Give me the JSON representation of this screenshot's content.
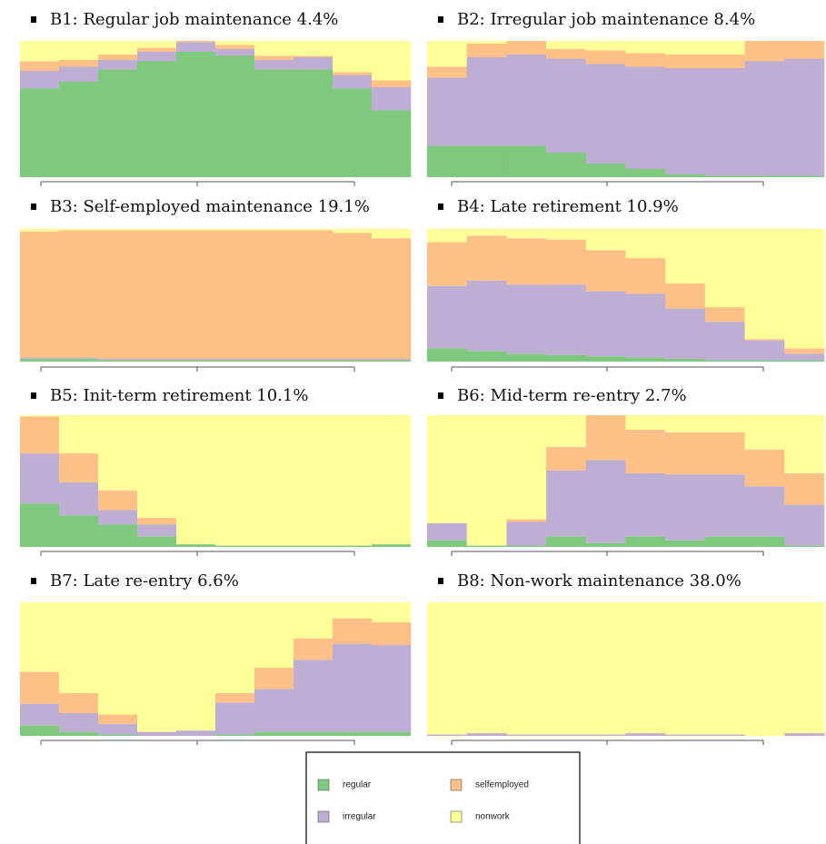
{
  "legend": {
    "items": [
      {
        "name": "regular",
        "color": "#7fc97f"
      },
      {
        "name": "irregular",
        "color": "#beaed4"
      },
      {
        "name": "selfemployed",
        "color": "#fdc086"
      },
      {
        "name": "nonwork",
        "color": "#ffff99"
      }
    ]
  },
  "chart_data": [
    {
      "type": "bar",
      "stacked": true,
      "title": "B1: Regular job maintenance 4.4%",
      "categories": [
        null,
        null,
        null,
        null,
        null,
        null,
        null,
        null,
        null,
        null
      ],
      "ylim": [
        0,
        1
      ],
      "series": [
        {
          "values": [
            0.65,
            0.7,
            0.79,
            0.85,
            0.92,
            0.89,
            0.79,
            0.79,
            0.65,
            0.49
          ]
        },
        {
          "values": [
            0.13,
            0.11,
            0.07,
            0.07,
            0.07,
            0.05,
            0.07,
            0.09,
            0.1,
            0.17
          ]
        },
        {
          "values": [
            0.07,
            0.05,
            0.04,
            0.03,
            0.01,
            0.03,
            0.03,
            0.01,
            0.02,
            0.05
          ]
        },
        {
          "values": [
            0.15,
            0.14,
            0.1,
            0.05,
            0.0,
            0.03,
            0.11,
            0.11,
            0.23,
            0.29
          ]
        }
      ]
    },
    {
      "type": "bar",
      "stacked": true,
      "title": "B2: Irregular job maintenance 8.4%",
      "categories": [
        null,
        null,
        null,
        null,
        null,
        null,
        null,
        null,
        null,
        null
      ],
      "ylim": [
        0,
        1
      ],
      "series": [
        {
          "values": [
            0.23,
            0.23,
            0.23,
            0.18,
            0.1,
            0.06,
            0.02,
            0.01,
            0.01,
            0.01
          ]
        },
        {
          "values": [
            0.5,
            0.65,
            0.67,
            0.69,
            0.73,
            0.75,
            0.78,
            0.79,
            0.84,
            0.86
          ]
        },
        {
          "values": [
            0.08,
            0.1,
            0.1,
            0.07,
            0.1,
            0.1,
            0.1,
            0.1,
            0.15,
            0.13
          ]
        },
        {
          "values": [
            0.19,
            0.02,
            0.0,
            0.06,
            0.07,
            0.09,
            0.1,
            0.1,
            0.0,
            0.0
          ]
        }
      ]
    },
    {
      "type": "bar",
      "stacked": true,
      "title": "B3: Self-employed maintenance 19.1%",
      "categories": [
        null,
        null,
        null,
        null,
        null,
        null,
        null,
        null,
        null,
        null
      ],
      "ylim": [
        0,
        1
      ],
      "series": [
        {
          "values": [
            0.02,
            0.02,
            0.01,
            0.01,
            0.01,
            0.01,
            0.01,
            0.01,
            0.01,
            0.01
          ]
        },
        {
          "values": [
            0.01,
            0.01,
            0.01,
            0.01,
            0.01,
            0.01,
            0.01,
            0.01,
            0.01,
            0.01
          ]
        },
        {
          "values": [
            0.95,
            0.96,
            0.97,
            0.97,
            0.97,
            0.97,
            0.97,
            0.97,
            0.95,
            0.91
          ]
        },
        {
          "values": [
            0.02,
            0.01,
            0.01,
            0.01,
            0.01,
            0.01,
            0.01,
            0.01,
            0.03,
            0.07
          ]
        }
      ]
    },
    {
      "type": "bar",
      "stacked": true,
      "title": "B4: Late retirement 10.9%",
      "categories": [
        null,
        null,
        null,
        null,
        null,
        null,
        null,
        null,
        null,
        null
      ],
      "ylim": [
        0,
        1
      ],
      "series": [
        {
          "values": [
            0.1,
            0.08,
            0.06,
            0.05,
            0.04,
            0.03,
            0.02,
            0.01,
            0.01,
            0.01
          ]
        },
        {
          "values": [
            0.47,
            0.53,
            0.52,
            0.53,
            0.49,
            0.48,
            0.38,
            0.29,
            0.15,
            0.05
          ]
        },
        {
          "values": [
            0.33,
            0.34,
            0.35,
            0.34,
            0.31,
            0.27,
            0.19,
            0.11,
            0.01,
            0.04
          ]
        },
        {
          "values": [
            0.1,
            0.05,
            0.07,
            0.08,
            0.16,
            0.22,
            0.41,
            0.59,
            0.83,
            0.9
          ]
        }
      ]
    },
    {
      "type": "bar",
      "stacked": true,
      "title": "B5: Init-term retirement 10.1%",
      "categories": [
        null,
        null,
        null,
        null,
        null,
        null,
        null,
        null,
        null,
        null
      ],
      "ylim": [
        0,
        1
      ],
      "series": [
        {
          "values": [
            0.33,
            0.24,
            0.17,
            0.08,
            0.02,
            0.01,
            0.01,
            0.01,
            0.01,
            0.02
          ]
        },
        {
          "values": [
            0.38,
            0.25,
            0.11,
            0.09,
            0.0,
            0.0,
            0.0,
            0.0,
            0.0,
            0.0
          ]
        },
        {
          "values": [
            0.28,
            0.22,
            0.15,
            0.05,
            0.0,
            0.0,
            0.0,
            0.0,
            0.0,
            0.0
          ]
        },
        {
          "values": [
            0.01,
            0.29,
            0.57,
            0.78,
            0.98,
            0.99,
            0.99,
            0.99,
            0.99,
            0.98
          ]
        }
      ]
    },
    {
      "type": "bar",
      "stacked": true,
      "title": "B6: Mid-term re-entry 2.7%",
      "categories": [
        null,
        null,
        null,
        null,
        null,
        null,
        null,
        null,
        null,
        null
      ],
      "ylim": [
        0,
        1
      ],
      "series": [
        {
          "values": [
            0.05,
            0.01,
            0.01,
            0.08,
            0.03,
            0.08,
            0.05,
            0.08,
            0.08,
            0.01
          ]
        },
        {
          "values": [
            0.13,
            0.0,
            0.18,
            0.5,
            0.63,
            0.48,
            0.5,
            0.47,
            0.38,
            0.31
          ]
        },
        {
          "values": [
            0.0,
            0.0,
            0.02,
            0.18,
            0.34,
            0.33,
            0.32,
            0.32,
            0.28,
            0.24
          ]
        },
        {
          "values": [
            0.82,
            0.99,
            0.79,
            0.24,
            0.0,
            0.11,
            0.13,
            0.13,
            0.26,
            0.44
          ]
        }
      ]
    },
    {
      "type": "bar",
      "stacked": true,
      "title": "B7: Late re-entry 6.6%",
      "categories": [
        null,
        null,
        null,
        null,
        null,
        null,
        null,
        null,
        null,
        null
      ],
      "ylim": [
        0,
        1
      ],
      "series": [
        {
          "values": [
            0.08,
            0.03,
            0.01,
            0.0,
            0.0,
            0.01,
            0.03,
            0.03,
            0.03,
            0.03
          ]
        },
        {
          "values": [
            0.16,
            0.14,
            0.08,
            0.03,
            0.04,
            0.24,
            0.32,
            0.54,
            0.66,
            0.65
          ]
        },
        {
          "values": [
            0.24,
            0.15,
            0.07,
            0.0,
            0.0,
            0.07,
            0.16,
            0.16,
            0.19,
            0.17
          ]
        },
        {
          "values": [
            0.52,
            0.68,
            0.84,
            0.97,
            0.96,
            0.68,
            0.49,
            0.27,
            0.12,
            0.15
          ]
        }
      ]
    },
    {
      "type": "bar",
      "stacked": true,
      "title": "B8: Non-work maintenance 38.0%",
      "categories": [
        null,
        null,
        null,
        null,
        null,
        null,
        null,
        null,
        null,
        null
      ],
      "ylim": [
        0,
        1
      ],
      "series": [
        {
          "values": [
            0.0,
            0.0,
            0.0,
            0.0,
            0.0,
            0.0,
            0.0,
            0.0,
            0.0,
            0.0
          ]
        },
        {
          "values": [
            0.01,
            0.02,
            0.01,
            0.01,
            0.01,
            0.02,
            0.01,
            0.01,
            0.0,
            0.02
          ]
        },
        {
          "values": [
            0.0,
            0.0,
            0.0,
            0.0,
            0.0,
            0.0,
            0.0,
            0.0,
            0.0,
            0.0
          ]
        },
        {
          "values": [
            0.99,
            0.98,
            0.99,
            0.99,
            0.99,
            0.98,
            0.99,
            0.99,
            1.0,
            0.98
          ]
        }
      ]
    }
  ]
}
